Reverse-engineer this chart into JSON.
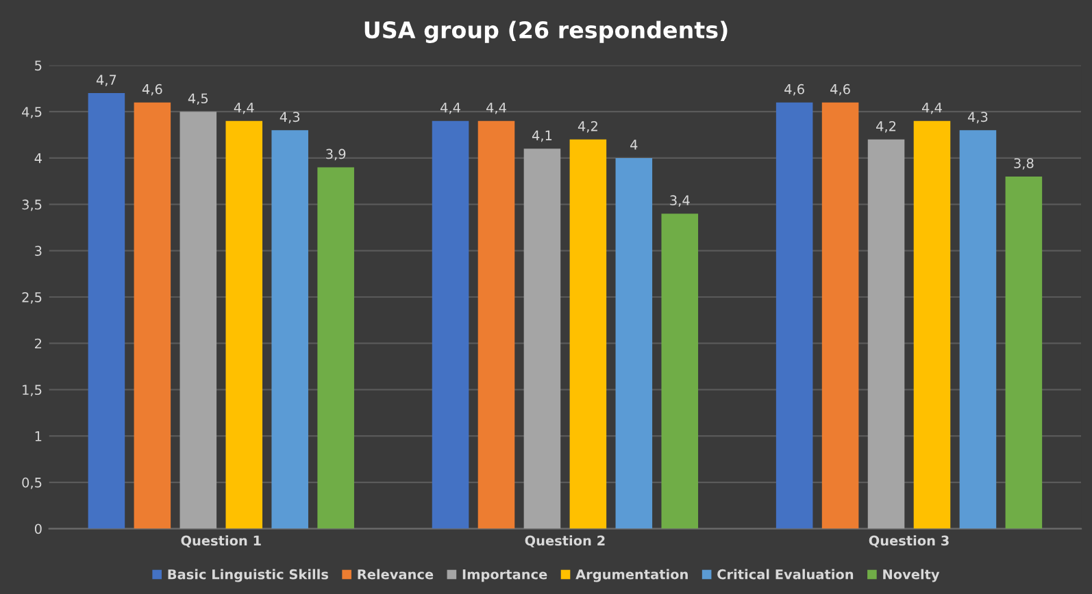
{
  "chart_data": {
    "type": "bar",
    "title": "USA group (26 respondents)",
    "categories": [
      "Question 1",
      "Question 2",
      "Question 3"
    ],
    "series": [
      {
        "name": "Basic Linguistic Skills",
        "color": "#4472c4",
        "values": [
          4.7,
          4.4,
          4.6
        ],
        "value_labels": [
          "4,7",
          "4,4",
          "4,6"
        ]
      },
      {
        "name": "Relevance",
        "color": "#ed7d31",
        "values": [
          4.6,
          4.4,
          4.6
        ],
        "value_labels": [
          "4,6",
          "4,4",
          "4,6"
        ]
      },
      {
        "name": "Importance",
        "color": "#a5a5a5",
        "values": [
          4.5,
          4.1,
          4.2
        ],
        "value_labels": [
          "4,5",
          "4,1",
          "4,2"
        ]
      },
      {
        "name": "Argumentation",
        "color": "#ffc000",
        "values": [
          4.4,
          4.2,
          4.4
        ],
        "value_labels": [
          "4,4",
          "4,2",
          "4,4"
        ]
      },
      {
        "name": "Critical Evaluation",
        "color": "#5b9bd5",
        "values": [
          4.3,
          4.0,
          4.3
        ],
        "value_labels": [
          "4,3",
          "4",
          "4,3"
        ]
      },
      {
        "name": "Novelty",
        "color": "#70ad47",
        "values": [
          3.9,
          3.4,
          3.8
        ],
        "value_labels": [
          "3,9",
          "3,4",
          "3,8"
        ]
      }
    ],
    "ylim": [
      0,
      5
    ],
    "yticks": [
      0,
      {
        "value": 0.5,
        "label": "0,5"
      },
      1,
      {
        "value": 1.5,
        "label": "1,5"
      },
      2,
      {
        "value": 2.5,
        "label": "2,5"
      },
      3,
      {
        "value": 3.5,
        "label": "3,5"
      },
      4,
      {
        "value": 4.5,
        "label": "4,5"
      },
      5
    ],
    "grid": "y",
    "legend": "bottom"
  }
}
